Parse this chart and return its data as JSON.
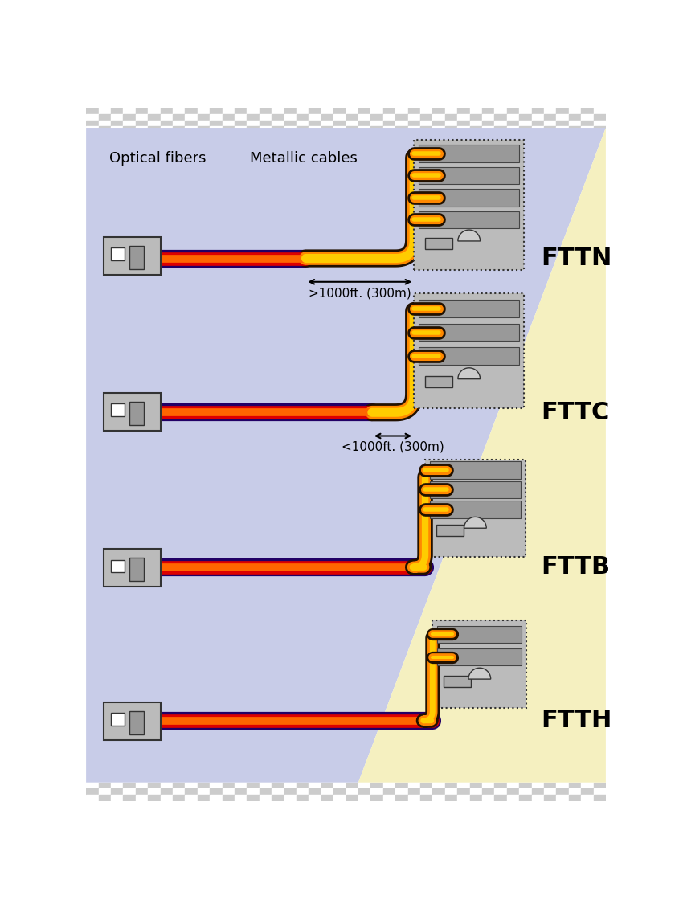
{
  "bg_blue": "#c8cce8",
  "bg_yellow": "#f5f0c0",
  "label_optical": "Optical fibers",
  "label_metallic": "Metallic cables",
  "labels": [
    "FTTN",
    "FTTC",
    "FTTB",
    "FTTH"
  ],
  "annotations": [
    ">1000ft. (300m)",
    "<1000ft. (300m)"
  ],
  "color_orange": "#ff8800",
  "color_orange_center": "#ffcc00",
  "color_dark_orange": "#221100",
  "color_red": "#dd0000",
  "color_purple": "#220088",
  "color_gray_box": "#bbbbbb",
  "color_gray_slot": "#999999",
  "color_dark": "#333333",
  "fig_width": 8.4,
  "fig_height": 11.2
}
